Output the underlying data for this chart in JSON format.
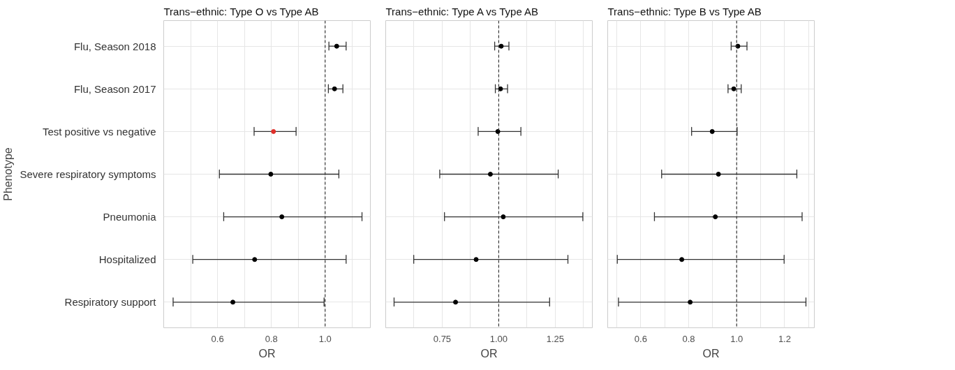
{
  "chart_data": [
    {
      "type": "scatter",
      "orientation": "horizontal",
      "title": "Trans−ethnic: Type O vs Type AB",
      "xlabel": "OR",
      "ylabel": "Phenotype",
      "categories": [
        "Flu, Season 2018",
        "Flu, Season 2017",
        "Test positive vs negative",
        "Severe respiratory symptoms",
        "Pneumonia",
        "Hospitalized",
        "Respiratory support"
      ],
      "values": [
        1.043,
        1.035,
        0.808,
        0.798,
        0.839,
        0.738,
        0.657
      ],
      "errors": [
        [
          1.014,
          1.078
        ],
        [
          1.012,
          1.066
        ],
        [
          0.736,
          0.892
        ],
        [
          0.607,
          1.051
        ],
        [
          0.623,
          1.137
        ],
        [
          0.508,
          1.078
        ],
        [
          0.435,
          0.996
        ]
      ],
      "colors": [
        "#000000",
        "#000000",
        "#e0302a",
        "#000000",
        "#000000",
        "#000000",
        "#000000"
      ],
      "xlim": [
        0.4,
        1.168
      ],
      "xticks": [
        {
          "value": 0.5,
          "label": null
        },
        0.6,
        {
          "value": 0.7,
          "label": null
        },
        0.8,
        {
          "value": 0.9,
          "label": null
        },
        {
          "value": 1.0,
          "label": "1.0"
        },
        {
          "value": 1.1,
          "label": null
        }
      ],
      "ref_lines": [
        {
          "axis": "x",
          "value": 1.0,
          "line_style": "dashed",
          "color": "#333333"
        }
      ],
      "grid": true,
      "marker": "circle"
    },
    {
      "type": "scatter",
      "orientation": "horizontal",
      "title": "Trans−ethnic: Type A vs Type AB",
      "xlabel": "OR",
      "categories": [
        null,
        null,
        null,
        null,
        null,
        null,
        null
      ],
      "values": [
        1.011,
        1.008,
        0.996,
        0.963,
        1.02,
        0.9,
        0.809
      ],
      "errors": [
        [
          0.982,
          1.045
        ],
        [
          0.985,
          1.039
        ],
        [
          0.909,
          1.098
        ],
        [
          0.739,
          1.263
        ],
        [
          0.76,
          1.372
        ],
        [
          0.624,
          1.306
        ],
        [
          0.537,
          1.225
        ]
      ],
      "colors": [
        "#000000",
        "#000000",
        "#000000",
        "#000000",
        "#000000",
        "#000000",
        "#000000"
      ],
      "xlim": [
        0.5,
        1.414
      ],
      "xticks": [
        {
          "value": 0.625,
          "label": null
        },
        {
          "value": 0.75,
          "label": "0.75"
        },
        {
          "value": 0.875,
          "label": null
        },
        {
          "value": 1.0,
          "label": "1.00"
        },
        {
          "value": 1.125,
          "label": null
        },
        {
          "value": 1.25,
          "label": "1.25"
        },
        {
          "value": 1.375,
          "label": null
        }
      ],
      "ref_lines": [
        {
          "axis": "x",
          "value": 1.0,
          "line_style": "dashed",
          "color": "#333333"
        }
      ],
      "grid": true,
      "marker": "circle",
      "tick_labels": "x"
    },
    {
      "type": "scatter",
      "orientation": "horizontal",
      "title": "Trans−ethnic: Type B vs Type AB",
      "xlabel": "OR",
      "categories": [
        null,
        null,
        null,
        null,
        null,
        null,
        null
      ],
      "values": [
        1.005,
        0.988,
        0.898,
        0.924,
        0.911,
        0.771,
        0.806
      ],
      "errors": [
        [
          0.977,
          1.043
        ],
        [
          0.964,
          1.019
        ],
        [
          0.812,
          1.002
        ],
        [
          0.687,
          1.251
        ],
        [
          0.657,
          1.273
        ],
        [
          0.502,
          1.198
        ],
        [
          0.507,
          1.289
        ]
      ],
      "colors": [
        "#000000",
        "#000000",
        "#000000",
        "#000000",
        "#000000",
        "#000000",
        "#000000"
      ],
      "xlim": [
        0.462,
        1.324
      ],
      "xticks": [
        {
          "value": 0.5,
          "label": null
        },
        0.6,
        {
          "value": 0.7,
          "label": null
        },
        0.8,
        {
          "value": 0.9,
          "label": null
        },
        {
          "value": 1.0,
          "label": "1.0"
        },
        {
          "value": 1.1,
          "label": null
        },
        1.2,
        {
          "value": 1.3,
          "label": null
        }
      ],
      "ref_lines": [
        {
          "axis": "x",
          "value": 1.0,
          "line_style": "dashed",
          "color": "#333333"
        }
      ],
      "grid": true,
      "marker": "circle",
      "tick_labels": "x"
    }
  ]
}
